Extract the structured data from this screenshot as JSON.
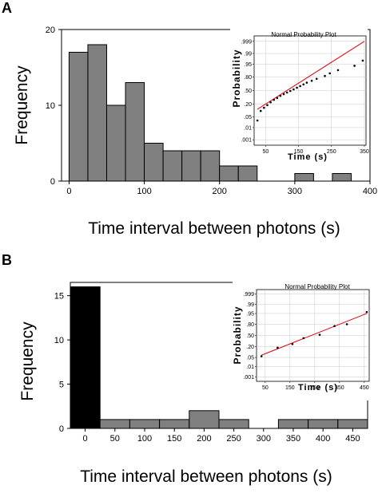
{
  "panels": [
    {
      "letter": "A",
      "chart_data": {
        "type": "bar",
        "bin_starts": [
          0,
          25,
          50,
          75,
          100,
          125,
          150,
          175,
          200,
          225,
          250,
          275,
          300,
          325,
          350,
          375
        ],
        "bin_width": 25,
        "values": [
          17,
          18,
          10,
          13,
          5,
          4,
          4,
          4,
          2,
          2,
          0,
          0,
          1,
          0,
          1,
          0
        ],
        "highlight_bins": [],
        "xlim": [
          -10,
          400
        ],
        "ylim": [
          0,
          20
        ],
        "xticks": [
          0,
          100,
          200,
          300,
          400
        ],
        "yticks": [
          0,
          10,
          20
        ],
        "xlabel": "Time interval between photons (s)",
        "ylabel": "Frequency",
        "bar_color": "#808080",
        "highlight_color": "#000000",
        "inset": {
          "title": "Normal Probability Plot",
          "xlabel": "Time (s)",
          "ylabel": "Probability",
          "xticks": [
            50,
            150,
            250,
            350
          ],
          "yticks": [
            ".001",
            ".01",
            ".05",
            ".20",
            ".50",
            ".80",
            ".95",
            ".99",
            ".999"
          ],
          "xlim": [
            15,
            355
          ],
          "points_x": [
            25,
            35,
            45,
            55,
            65,
            75,
            85,
            95,
            105,
            115,
            125,
            135,
            145,
            155,
            165,
            175,
            190,
            205,
            230,
            245,
            270,
            320,
            345
          ],
          "points_p": [
            0.03,
            0.1,
            0.14,
            0.18,
            0.23,
            0.28,
            0.32,
            0.37,
            0.41,
            0.45,
            0.49,
            0.53,
            0.57,
            0.61,
            0.65,
            0.69,
            0.73,
            0.77,
            0.82,
            0.86,
            0.9,
            0.94,
            0.97
          ],
          "fit_x": [
            25,
            350
          ],
          "fit_p": [
            0.12,
            0.999
          ],
          "line_color": "#e8000b"
        }
      }
    },
    {
      "letter": "B",
      "chart_data": {
        "type": "bar",
        "bin_starts": [
          -25,
          25,
          75,
          125,
          175,
          225,
          275,
          325,
          375,
          425
        ],
        "bin_width": 50,
        "values": [
          16,
          1,
          1,
          1,
          2,
          1,
          0,
          1,
          1,
          1
        ],
        "highlight_bins": [
          0
        ],
        "xlim": [
          -25,
          475
        ],
        "ylim": [
          0,
          16.5
        ],
        "xticks": [
          0,
          50,
          100,
          150,
          200,
          250,
          300,
          350,
          400,
          450
        ],
        "yticks": [
          0,
          5,
          10,
          15
        ],
        "xlabel": "Time interval between photons (s)",
        "ylabel": "Frequency",
        "bar_color": "#808080",
        "highlight_color": "#000000",
        "inset": {
          "title": "Normal Probability Plot",
          "xlabel": "Time (s)",
          "ylabel": "Probability",
          "xticks": [
            50,
            150,
            250,
            350,
            450
          ],
          "yticks": [
            ".001",
            ".01",
            ".05",
            ".20",
            ".50",
            ".80",
            ".95",
            ".99",
            ".999"
          ],
          "xlim": [
            15,
            470
          ],
          "points_x": [
            35,
            100,
            160,
            205,
            270,
            330,
            380,
            460
          ],
          "points_p": [
            0.06,
            0.18,
            0.26,
            0.42,
            0.52,
            0.76,
            0.8,
            0.96
          ],
          "fit_x": [
            35,
            460
          ],
          "fit_p": [
            0.07,
            0.95
          ],
          "line_color": "#e8000b"
        }
      }
    }
  ]
}
